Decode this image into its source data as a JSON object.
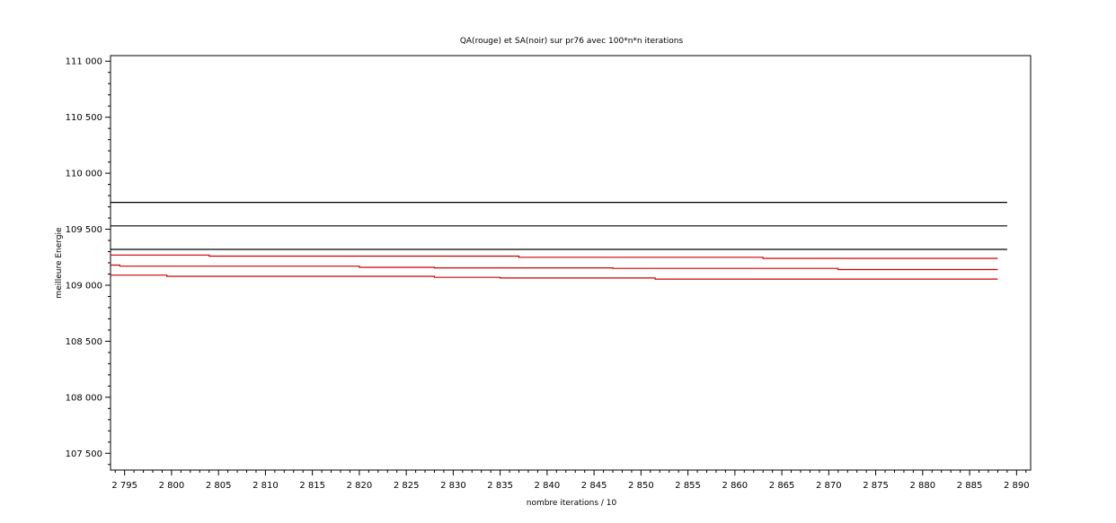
{
  "chart_data": {
    "type": "line",
    "title": "QA(rouge) et SA(noir) sur pr76 avec 100*n*n iterations",
    "xlabel": "nombre iterations / 10",
    "ylabel": "meilleure Energie",
    "xlim": [
      2793.5,
      2891.5
    ],
    "ylim": [
      107350,
      111050
    ],
    "x_ticks": [
      2795,
      2800,
      2805,
      2810,
      2815,
      2820,
      2825,
      2830,
      2835,
      2840,
      2845,
      2850,
      2855,
      2860,
      2865,
      2870,
      2875,
      2880,
      2885,
      2890
    ],
    "x_tick_labels": [
      "2 795",
      "2 800",
      "2 805",
      "2 810",
      "2 815",
      "2 820",
      "2 825",
      "2 830",
      "2 835",
      "2 840",
      "2 845",
      "2 850",
      "2 855",
      "2 860",
      "2 865",
      "2 870",
      "2 875",
      "2 880",
      "2 885",
      "2 890"
    ],
    "y_ticks": [
      107500,
      108000,
      108500,
      109000,
      109500,
      110000,
      110500,
      111000
    ],
    "y_tick_labels": [
      "107 500",
      "108 000",
      "108 500",
      "109 000",
      "109 500",
      "110 000",
      "110 500",
      "111 000"
    ],
    "x_minor_step": 1,
    "y_minor_step": 100,
    "grid": false,
    "legend": "none",
    "colors": {
      "rouge": "#cc0000",
      "noir": "#000000"
    },
    "series": [
      {
        "color": "#000000",
        "x": [
          2793.5,
          2889.0
        ],
        "y": [
          109740,
          109740
        ]
      },
      {
        "color": "#000000",
        "x": [
          2793.5,
          2889.0
        ],
        "y": [
          109530,
          109530
        ]
      },
      {
        "color": "#000000",
        "x": [
          2793.5,
          2889.0
        ],
        "y": [
          109320,
          109320
        ]
      },
      {
        "color": "#cc0000",
        "x": [
          2793.5,
          2804.0,
          2804.0,
          2837.0,
          2837.0,
          2863.0,
          2863.0,
          2888.0
        ],
        "y": [
          109270,
          109270,
          109260,
          109260,
          109250,
          109250,
          109240,
          109240
        ]
      },
      {
        "color": "#cc0000",
        "x": [
          2793.5,
          2794.5,
          2794.5,
          2820.0,
          2820.0,
          2828.0,
          2828.0,
          2847.0,
          2847.0,
          2871.0,
          2871.0,
          2888.0
        ],
        "y": [
          109180,
          109180,
          109170,
          109170,
          109160,
          109160,
          109155,
          109155,
          109150,
          109150,
          109140,
          109140
        ]
      },
      {
        "color": "#cc0000",
        "x": [
          2793.5,
          2799.5,
          2799.5,
          2828.0,
          2828.0,
          2835.0,
          2835.0,
          2851.5,
          2851.5,
          2888.0
        ],
        "y": [
          109090,
          109090,
          109080,
          109080,
          109070,
          109070,
          109065,
          109065,
          109055,
          109055
        ]
      }
    ]
  }
}
